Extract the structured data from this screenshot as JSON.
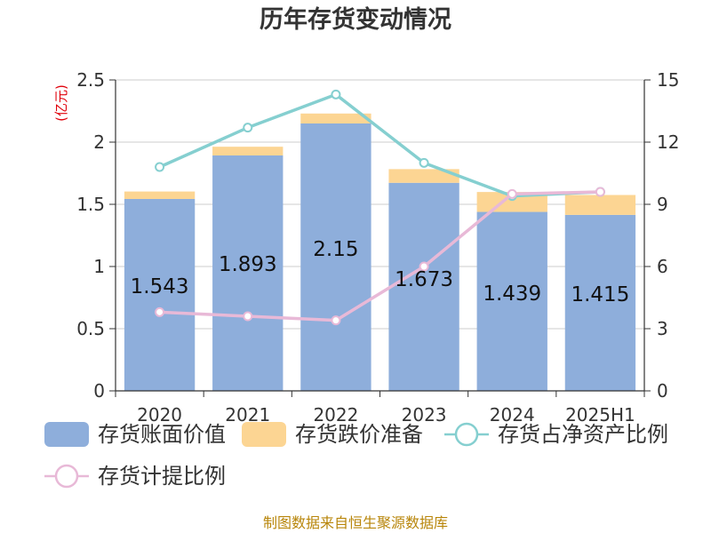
{
  "chart_data": {
    "type": "bar",
    "title": "历年存货变动情况",
    "unit_left": "(亿元)",
    "categories": [
      "2020",
      "2021",
      "2022",
      "2023",
      "2024",
      "2025H1"
    ],
    "series": [
      {
        "name": "存货账面价值",
        "type": "bar",
        "stack": "inventory",
        "axis": "left",
        "color": "#8eaedb",
        "values": [
          1.543,
          1.893,
          2.15,
          1.673,
          1.439,
          1.415
        ],
        "labels": [
          "1.543",
          "1.893",
          "2.15",
          "1.673",
          "1.439",
          "1.415"
        ]
      },
      {
        "name": "存货跌价准备",
        "type": "bar",
        "stack": "inventory",
        "axis": "left",
        "color": "#fcd593",
        "values": [
          0.06,
          0.07,
          0.08,
          0.11,
          0.16,
          0.16
        ]
      },
      {
        "name": "存货占净资产比例",
        "type": "line",
        "axis": "right",
        "color": "#85cfd0",
        "values": [
          10.8,
          12.7,
          14.3,
          11.0,
          9.4,
          9.6
        ]
      },
      {
        "name": "存货计提比例",
        "type": "line",
        "axis": "right",
        "color": "#e8b9d7",
        "values": [
          3.8,
          3.6,
          3.4,
          6.0,
          9.5,
          9.6
        ]
      }
    ],
    "y_left": {
      "min": 0,
      "max": 2.5,
      "ticks": [
        "0",
        "0.5",
        "1",
        "1.5",
        "2",
        "2.5"
      ]
    },
    "y_right": {
      "min": 0,
      "max": 15,
      "ticks": [
        "0",
        "3",
        "6",
        "9",
        "12",
        "15"
      ]
    },
    "grid": true,
    "legend_position": "bottom"
  },
  "source": "制图数据来自恒生聚源数据库"
}
